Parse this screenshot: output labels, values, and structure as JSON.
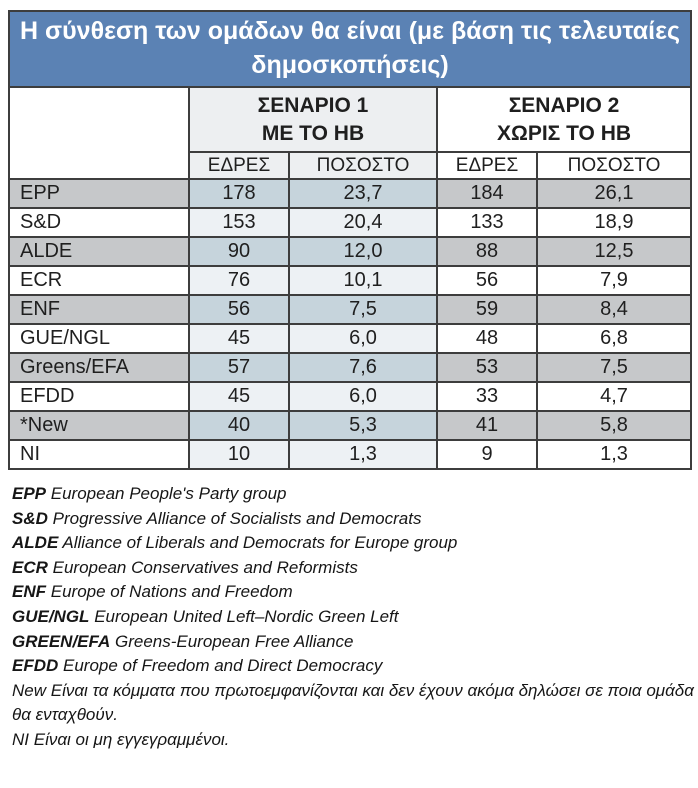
{
  "chart_data": {
    "type": "table",
    "title": "Η σύνθεση των ομάδων θα είναι (με βάση τις τελευταίες δημοσκοπήσεις)",
    "scenario1": {
      "line1": "ΣΕΝΑΡΙΟ 1",
      "line2": "ΜΕ ΤΟ ΗΒ"
    },
    "scenario2": {
      "line1": "ΣΕΝΑΡΙΟ 2",
      "line2": "ΧΩΡΙΣ ΤΟ ΗΒ"
    },
    "subcolumns": {
      "seats": "ΕΔΡΕΣ",
      "percent": "ΠΟΣΟΣΤΟ"
    },
    "rows": [
      {
        "label": "EPP",
        "s1_seats": "178",
        "s1_percent": "23,7",
        "s2_seats": "184",
        "s2_percent": "26,1"
      },
      {
        "label": "S&D",
        "s1_seats": "153",
        "s1_percent": "20,4",
        "s2_seats": "133",
        "s2_percent": "18,9"
      },
      {
        "label": "ALDE",
        "s1_seats": "90",
        "s1_percent": "12,0",
        "s2_seats": "88",
        "s2_percent": "12,5"
      },
      {
        "label": "ECR",
        "s1_seats": "76",
        "s1_percent": "10,1",
        "s2_seats": "56",
        "s2_percent": "7,9"
      },
      {
        "label": "ENF",
        "s1_seats": "56",
        "s1_percent": "7,5",
        "s2_seats": "59",
        "s2_percent": "8,4"
      },
      {
        "label": "GUE/NGL",
        "s1_seats": "45",
        "s1_percent": "6,0",
        "s2_seats": "48",
        "s2_percent": "6,8"
      },
      {
        "label": "Greens/EFA",
        "s1_seats": "57",
        "s1_percent": "7,6",
        "s2_seats": "53",
        "s2_percent": "7,5"
      },
      {
        "label": "EFDD",
        "s1_seats": "45",
        "s1_percent": "6,0",
        "s2_seats": "33",
        "s2_percent": "4,7"
      },
      {
        "label": "*New",
        "s1_seats": "40",
        "s1_percent": "5,3",
        "s2_seats": "41",
        "s2_percent": "5,8"
      },
      {
        "label": "NI",
        "s1_seats": "10",
        "s1_percent": "1,3",
        "s2_seats": "9",
        "s2_percent": "1,3"
      }
    ]
  },
  "footnotes": [
    {
      "term": "EPP",
      "text": "European People's Party group",
      "term_bold": true
    },
    {
      "term": "S&D",
      "text": "Progressive Alliance of Socialists and Democrats",
      "term_bold": true
    },
    {
      "term": "ALDE",
      "text": "Alliance of Liberals and Democrats for Europe group",
      "term_bold": true
    },
    {
      "term": "ECR",
      "text": "European Conservatives and Reformists",
      "term_bold": true
    },
    {
      "term": "ENF",
      "text": "Europe of Nations and Freedom",
      "term_bold": true
    },
    {
      "term": "GUE/NGL",
      "text": "European United Left–Nordic Green Left",
      "term_bold": true
    },
    {
      "term": "GREEN/EFA",
      "text": "Greens-European Free Alliance",
      "term_bold": true
    },
    {
      "term": "EFDD",
      "text": "Europe of Freedom and Direct Democracy",
      "term_bold": true
    },
    {
      "term": "New",
      "text": "Είναι τα κόμματα που πρωτοεμφανίζονται και δεν έχουν ακόμα δηλώσει σε ποια ομάδα θα ενταχθούν.",
      "term_bold": false
    },
    {
      "term": "NI",
      "text": "Είναι οι μη εγγεγραμμένοι.",
      "term_bold": false
    }
  ],
  "colors": {
    "title_bg": "#5b82b4",
    "title_text": "#ffffff",
    "border": "#3d3d3d",
    "row_gray": "#c6c8ca",
    "row_white": "#ffffff",
    "s1_gray": "#c6d4dc",
    "s1_white": "#edf1f4",
    "s1_header_bg": "#edeff1",
    "text": "#1f1f1f"
  }
}
